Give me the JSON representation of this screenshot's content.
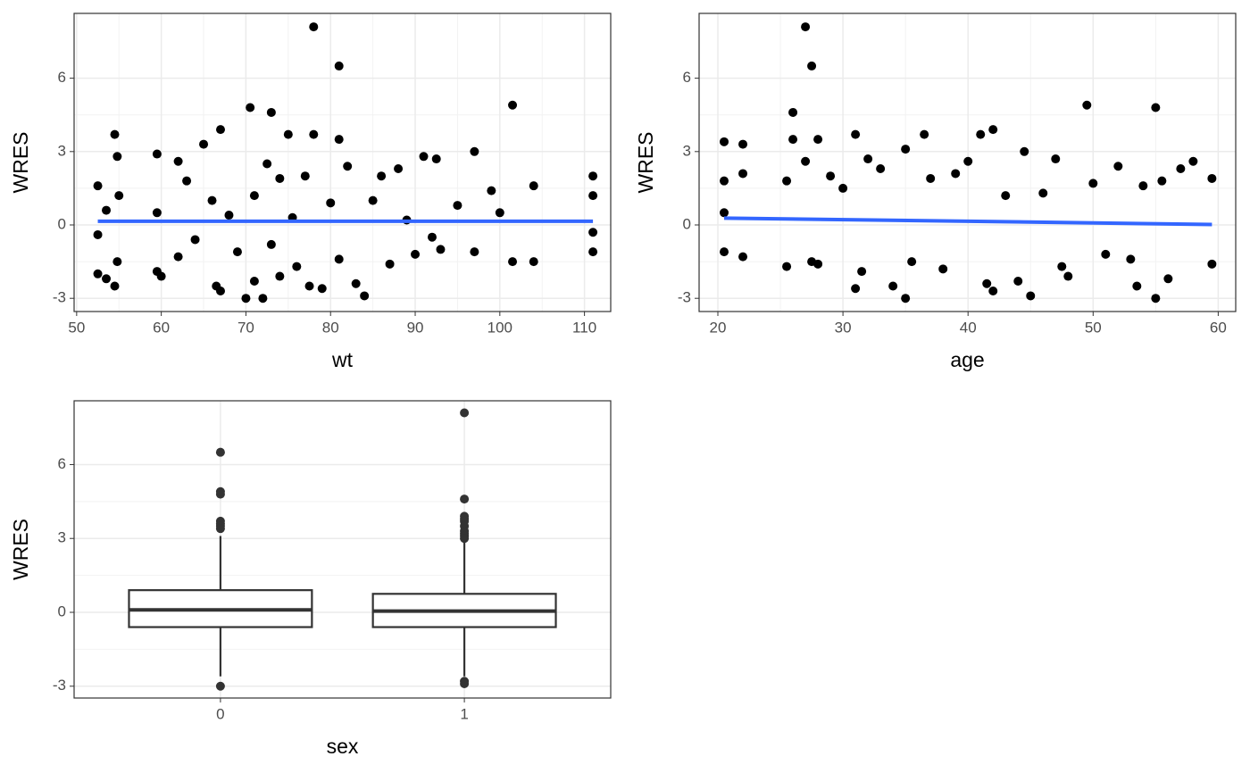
{
  "chart_data": [
    {
      "type": "scatter",
      "xlabel": "wt",
      "ylabel": "WRES",
      "xlim": [
        49.7,
        113.1
      ],
      "ylim": [
        -3.54,
        8.65
      ],
      "xticks": [
        50,
        60,
        70,
        80,
        90,
        100,
        110
      ],
      "yticks": [
        -3,
        0,
        3,
        6
      ],
      "grid": true,
      "series": [
        {
          "type": "points",
          "color": "#000000",
          "x": [
            52.5,
            52.5,
            52.5,
            53.5,
            53.5,
            54.5,
            54.5,
            54.8,
            54.8,
            55,
            59.5,
            59.5,
            59.5,
            60,
            62,
            62,
            63,
            64,
            65,
            66,
            66.5,
            67,
            67,
            68,
            69,
            70,
            70.5,
            71,
            71,
            72,
            72.5,
            73,
            73,
            74,
            74,
            75,
            75.5,
            76,
            77,
            77.5,
            78,
            78,
            79,
            80,
            81,
            81,
            81,
            82,
            83,
            84,
            85,
            86,
            87,
            88,
            89,
            90,
            91,
            92,
            92.5,
            93,
            95,
            97,
            97,
            99,
            100,
            101.5,
            101.5,
            104,
            104,
            111,
            111,
            111,
            111
          ],
          "values": [
            1.6,
            -2.0,
            -0.4,
            0.6,
            -2.2,
            3.7,
            -2.5,
            2.8,
            -1.5,
            1.2,
            2.9,
            -1.9,
            0.5,
            -2.1,
            2.6,
            -1.3,
            1.8,
            -0.6,
            3.3,
            1.0,
            -2.5,
            3.9,
            -2.7,
            0.4,
            -1.1,
            -3.0,
            4.8,
            1.2,
            -2.3,
            -3.0,
            2.5,
            4.6,
            -0.8,
            1.9,
            -2.1,
            3.7,
            0.3,
            -1.7,
            2.0,
            -2.5,
            8.1,
            3.7,
            -2.6,
            0.9,
            6.5,
            3.5,
            -1.4,
            2.4,
            -2.4,
            -2.9,
            1.0,
            2.0,
            -1.6,
            2.3,
            0.2,
            -1.2,
            2.8,
            -0.5,
            2.7,
            -1.0,
            0.8,
            3.0,
            -1.1,
            1.4,
            0.5,
            4.9,
            -1.5,
            1.6,
            -1.5,
            2.0,
            1.2,
            -0.3,
            -1.1
          ]
        },
        {
          "type": "line",
          "color": "#3366ff",
          "x": [
            52.5,
            111
          ],
          "values": [
            0.15,
            0.15
          ]
        }
      ]
    },
    {
      "type": "scatter",
      "xlabel": "age",
      "ylabel": "WRES",
      "xlim": [
        18.5,
        61.4
      ],
      "ylim": [
        -3.54,
        8.65
      ],
      "xticks": [
        20,
        30,
        40,
        50,
        60
      ],
      "yticks": [
        -3,
        0,
        3,
        6
      ],
      "grid": true,
      "series": [
        {
          "type": "points",
          "color": "#000000",
          "x": [
            20.5,
            20.5,
            20.5,
            20.5,
            22,
            22,
            22,
            25.5,
            25.5,
            26,
            26,
            27,
            27,
            27.5,
            27.5,
            28,
            28,
            29,
            30,
            31,
            31,
            31.5,
            32,
            33,
            34,
            35,
            35,
            35.5,
            36.5,
            37,
            38,
            39,
            40,
            41,
            41.5,
            42,
            42,
            43,
            44,
            44.5,
            45,
            46,
            47,
            47.5,
            48,
            49.5,
            50,
            51,
            52,
            53,
            53.5,
            54,
            55,
            55,
            55.5,
            56,
            57,
            58,
            59.5,
            59.5
          ],
          "values": [
            3.4,
            1.8,
            -1.1,
            0.5,
            3.3,
            2.1,
            -1.3,
            1.8,
            -1.7,
            4.6,
            3.5,
            8.1,
            2.6,
            6.5,
            -1.5,
            3.5,
            -1.6,
            2.0,
            1.5,
            3.7,
            -2.6,
            -1.9,
            2.7,
            2.3,
            -2.5,
            3.1,
            -3.0,
            -1.5,
            3.7,
            1.9,
            -1.8,
            2.1,
            2.6,
            3.7,
            -2.4,
            3.9,
            -2.7,
            1.2,
            -2.3,
            3.0,
            -2.9,
            1.3,
            2.7,
            -1.7,
            -2.1,
            4.9,
            1.7,
            -1.2,
            2.4,
            -1.4,
            -2.5,
            1.6,
            4.8,
            -3.0,
            1.8,
            -2.2,
            2.3,
            2.6,
            1.9,
            -1.6
          ]
        },
        {
          "type": "line",
          "color": "#3366ff",
          "x": [
            20.5,
            59.5
          ],
          "values": [
            0.28,
            0.02
          ]
        }
      ]
    },
    {
      "type": "box",
      "xlabel": "sex",
      "ylabel": "WRES",
      "categories": [
        "0",
        "1"
      ],
      "ylim": [
        -3.48,
        8.59
      ],
      "yticks": [
        -3,
        0,
        3,
        6
      ],
      "grid": true,
      "color": "#333333",
      "boxes": [
        {
          "q1": -0.6,
          "median": 0.1,
          "q3": 0.9,
          "whisker_low": -2.6,
          "whisker_high": 3.1,
          "outliers": [
            6.5,
            4.9,
            4.8,
            3.7,
            3.6,
            3.5,
            3.4,
            -3.0
          ]
        },
        {
          "q1": -0.6,
          "median": 0.05,
          "q3": 0.75,
          "whisker_low": -2.6,
          "whisker_high": 2.9,
          "outliers": [
            8.1,
            4.6,
            3.9,
            3.8,
            3.7,
            3.5,
            3.3,
            3.2,
            3.1,
            3.0,
            -2.8,
            -2.9
          ]
        }
      ]
    }
  ]
}
